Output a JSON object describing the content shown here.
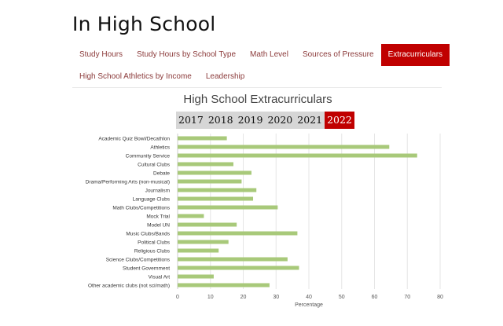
{
  "page": {
    "title": "In High School"
  },
  "tabs": [
    {
      "label": "Study Hours",
      "active": false
    },
    {
      "label": "Study Hours by School Type",
      "active": false
    },
    {
      "label": "Math Level",
      "active": false
    },
    {
      "label": "Sources of Pressure",
      "active": false
    },
    {
      "label": "Extracurriculars",
      "active": true
    }
  ],
  "tabs2": [
    {
      "label": "High School Athletics by Income",
      "active": false
    },
    {
      "label": "Leadership",
      "active": false
    }
  ],
  "years": [
    {
      "label": "2017",
      "active": false
    },
    {
      "label": "2018",
      "active": false
    },
    {
      "label": "2019",
      "active": false
    },
    {
      "label": "2020",
      "active": false
    },
    {
      "label": "2021",
      "active": false
    },
    {
      "label": "2022",
      "active": true
    }
  ],
  "colors": {
    "accent": "#c00000",
    "bar": "#a8c97a",
    "grid": "#e6e6e6"
  },
  "chart_data": {
    "type": "bar",
    "orientation": "horizontal",
    "title": "High School Extracurriculars",
    "xlabel": "Percentage",
    "xlim": [
      0,
      80
    ],
    "xticks": [
      0,
      10,
      20,
      30,
      40,
      50,
      60,
      70,
      80
    ],
    "grid": true,
    "categories": [
      "Academic Quiz Bowl/Decathlon",
      "Athletics",
      "Community Service",
      "Cultural Clubs",
      "Debate",
      "Drama/Performing Arts (non-musical)",
      "Journalism",
      "Language Clubs",
      "Math Clubs/Competitions",
      "Mock Trial",
      "Model UN",
      "Music Clubs/Bands",
      "Political Clubs",
      "Religious Clubs",
      "Science Clubs/Competitions",
      "Student Government",
      "Visual Art",
      "Other academic clubs (not sci/math)"
    ],
    "values": [
      15,
      64.5,
      73,
      17,
      22.5,
      19.5,
      24,
      23,
      30.5,
      8,
      18,
      36.5,
      15.5,
      12.5,
      33.5,
      37,
      11,
      28
    ]
  }
}
